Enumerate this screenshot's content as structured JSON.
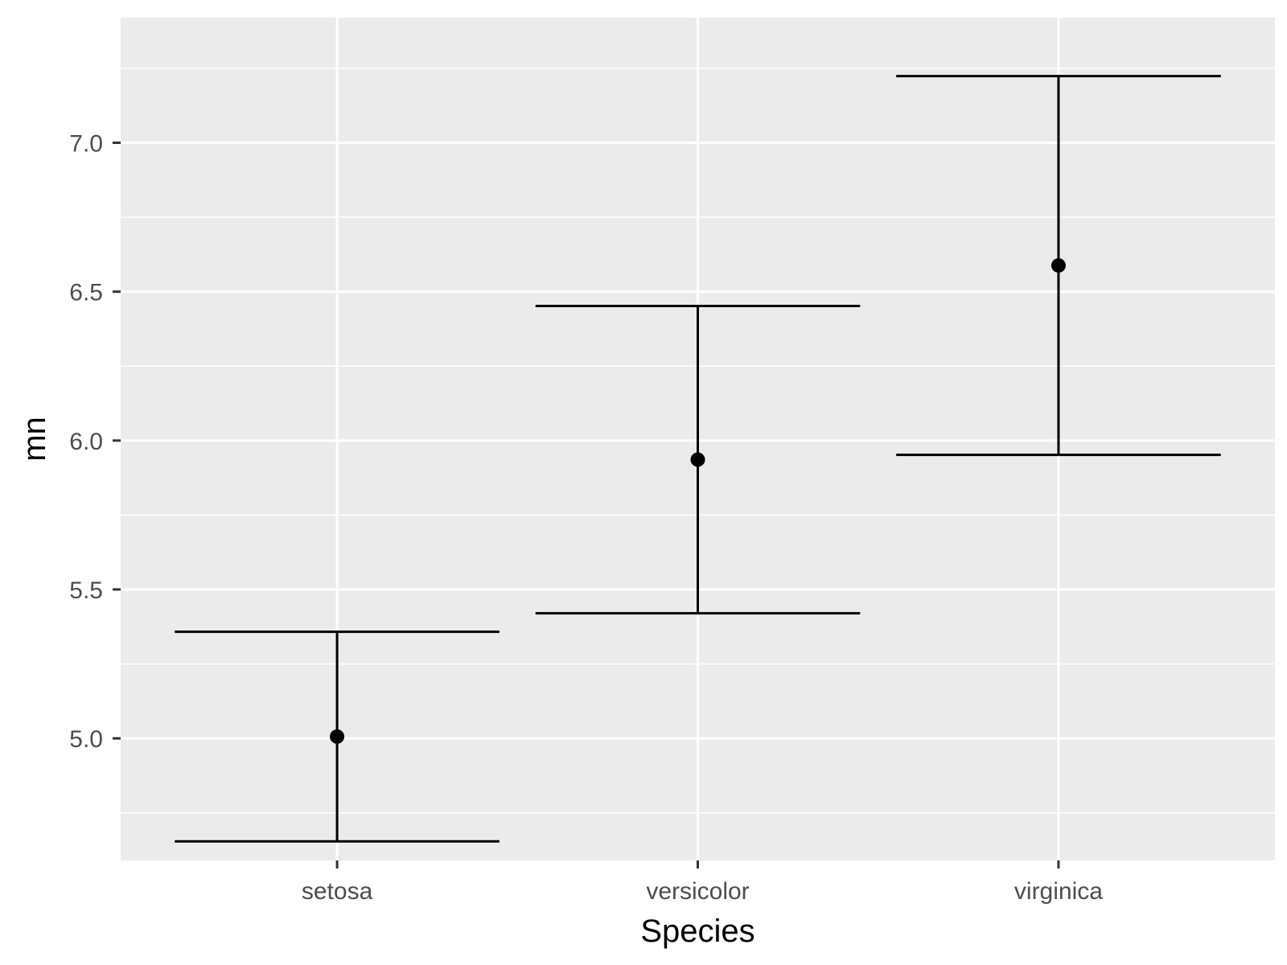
{
  "chart_data": {
    "type": "errorbar",
    "xlabel": "Species",
    "ylabel": "mn",
    "categories": [
      "setosa",
      "versicolor",
      "virginica"
    ],
    "series": [
      {
        "mean": [
          5.006,
          5.936,
          6.588
        ],
        "lower": [
          4.654,
          5.42,
          5.952
        ],
        "upper": [
          5.358,
          6.452,
          7.224
        ]
      }
    ],
    "ylim": [
      4.59,
      7.42
    ],
    "yticks": [
      5.0,
      5.5,
      6.0,
      6.5,
      7.0
    ],
    "ytick_labels": [
      "5.0",
      "5.5",
      "6.0",
      "6.5",
      "7.0"
    ],
    "grid": true,
    "colors": {
      "panel": "#ebebeb",
      "grid": "#ffffff",
      "marks": "#000000",
      "tick": "#333333"
    }
  }
}
